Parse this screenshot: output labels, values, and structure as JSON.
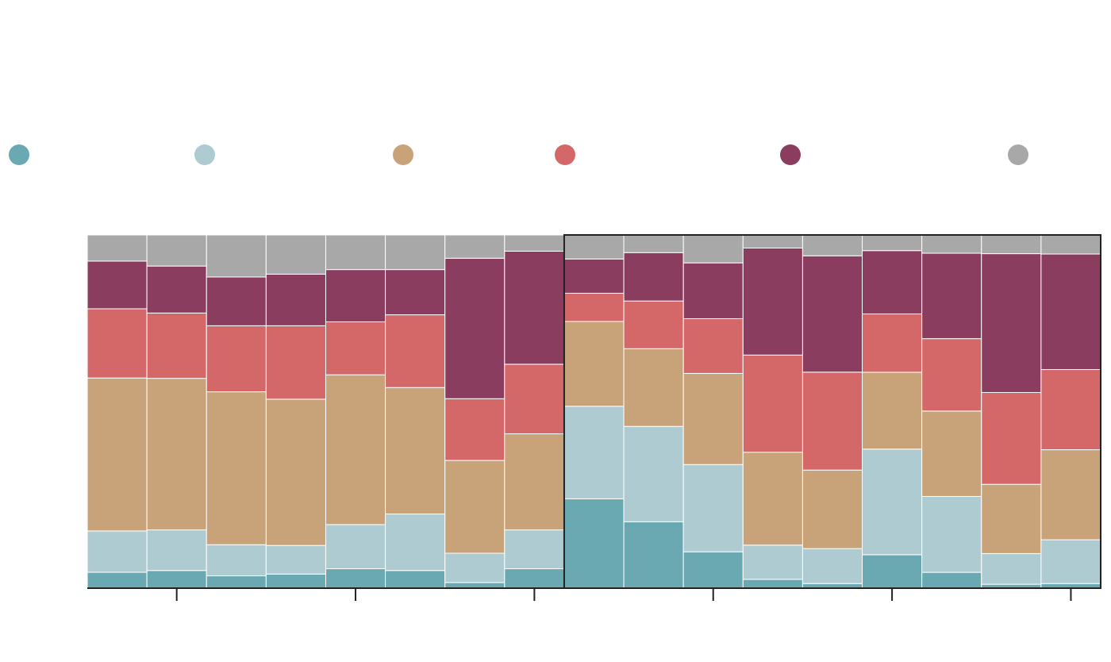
{
  "chart_data": {
    "type": "bar",
    "stacked": true,
    "normalized": true,
    "ylim": [
      0,
      100
    ],
    "grid": false,
    "legend_position": "top",
    "bar_count": 17,
    "highlighted_bars": [
      8,
      16
    ],
    "x_tick_count": 6,
    "series": [
      {
        "color": "#6AA8B2",
        "values": [
          4.5,
          5.0,
          3.5,
          4.0,
          5.5,
          5.0,
          1.6,
          5.5,
          25.3,
          18.8,
          10.3,
          2.5,
          1.3,
          9.4,
          4.5,
          1.1,
          1.3
        ]
      },
      {
        "color": "#AECBD2",
        "values": [
          11.7,
          11.5,
          8.8,
          8.1,
          12.5,
          16.0,
          8.3,
          11.0,
          26.2,
          27.0,
          24.7,
          9.7,
          9.9,
          29.7,
          21.6,
          8.7,
          12.4
        ]
      },
      {
        "color": "#C8A278",
        "values": [
          43.3,
          42.9,
          43.3,
          41.4,
          42.4,
          35.8,
          26.3,
          27.2,
          24.0,
          22.0,
          25.8,
          26.3,
          22.2,
          21.6,
          24.3,
          19.6,
          25.5
        ]
      },
      {
        "color": "#D46868",
        "values": [
          19.6,
          18.5,
          18.7,
          20.8,
          15.0,
          20.6,
          17.5,
          19.7,
          8.0,
          13.5,
          15.5,
          27.5,
          27.7,
          16.4,
          20.6,
          26.0,
          22.7
        ]
      },
      {
        "color": "#8A3D5F",
        "values": [
          13.5,
          13.3,
          13.8,
          14.6,
          14.8,
          12.8,
          39.8,
          32.0,
          9.7,
          13.7,
          15.8,
          30.3,
          32.9,
          17.8,
          24.3,
          39.3,
          32.7
        ]
      },
      {
        "color": "#A8A8A8",
        "values": [
          7.4,
          8.8,
          11.9,
          11.1,
          9.8,
          9.8,
          6.6,
          4.6,
          6.8,
          5.0,
          7.9,
          3.7,
          5.9,
          4.4,
          5.2,
          5.3,
          5.4
        ]
      }
    ]
  }
}
